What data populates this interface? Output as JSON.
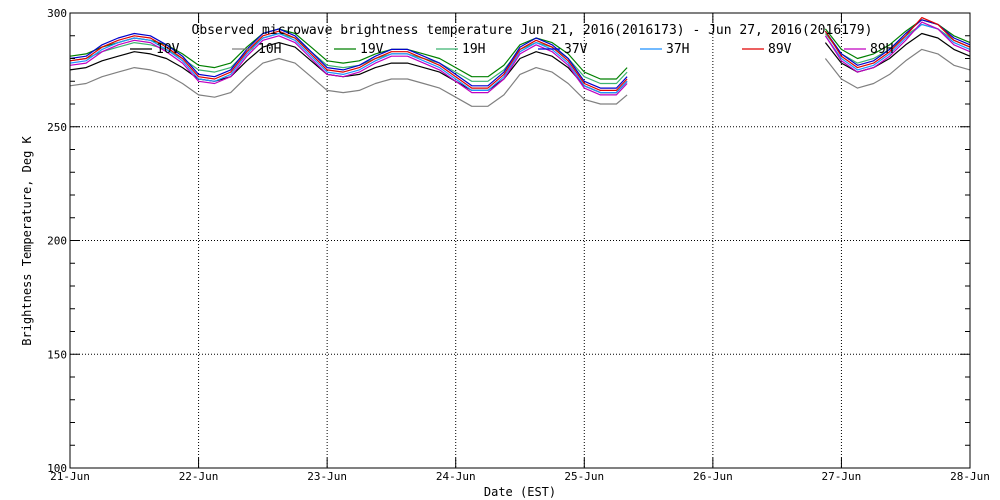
{
  "chart_data": {
    "type": "line",
    "title": "Observed microwave brightness temperature Jun 21, 2016(2016173) - Jun 27, 2016(2016179)",
    "xlabel": "Date (EST)",
    "ylabel": "Brightness Temperature, Deg K",
    "x_range": [
      "2016-06-21",
      "2016-06-28"
    ],
    "ylim": [
      100,
      300
    ],
    "x_ticks": [
      "21-Jun",
      "22-Jun",
      "23-Jun",
      "24-Jun",
      "25-Jun",
      "26-Jun",
      "27-Jun",
      "28-Jun"
    ],
    "y_ticks": [
      100,
      150,
      200,
      250,
      300
    ],
    "grid": true,
    "legend_position": "top",
    "legend": [
      "10V",
      "10H",
      "19V",
      "19H",
      "37V",
      "37H",
      "89V",
      "89H"
    ],
    "x": [
      "06-21 00:00",
      "06-21 03:00",
      "06-21 06:00",
      "06-21 09:00",
      "06-21 12:00",
      "06-21 15:00",
      "06-21 18:00",
      "06-21 21:00",
      "06-22 00:00",
      "06-22 03:00",
      "06-22 06:00",
      "06-22 09:00",
      "06-22 12:00",
      "06-22 15:00",
      "06-22 18:00",
      "06-22 21:00",
      "06-23 00:00",
      "06-23 03:00",
      "06-23 06:00",
      "06-23 09:00",
      "06-23 12:00",
      "06-23 15:00",
      "06-23 18:00",
      "06-23 21:00",
      "06-24 00:00",
      "06-24 03:00",
      "06-24 06:00",
      "06-24 09:00",
      "06-24 12:00",
      "06-24 15:00",
      "06-24 18:00",
      "06-24 21:00",
      "06-25 00:00",
      "06-25 03:00",
      "06-25 06:00",
      "06-25 08:00",
      "06-26 18:00",
      "06-26 21:00",
      "06-27 00:00",
      "06-27 03:00",
      "06-27 06:00",
      "06-27 09:00",
      "06-27 12:00",
      "06-27 15:00",
      "06-27 18:00",
      "06-27 21:00",
      "06-28 00:00"
    ],
    "series": [
      {
        "name": "10V",
        "color": "#000000",
        "values": [
          275,
          276,
          279,
          281,
          283,
          282,
          280,
          276,
          271,
          270,
          272,
          279,
          285,
          287,
          285,
          279,
          273,
          272,
          273,
          276,
          278,
          278,
          276,
          274,
          270,
          266,
          266,
          271,
          280,
          283,
          281,
          276,
          268,
          265,
          265,
          270,
          null,
          287,
          278,
          274,
          276,
          280,
          286,
          291,
          289,
          284,
          281
        ]
      },
      {
        "name": "10H",
        "color": "#808080",
        "values": [
          268,
          269,
          272,
          274,
          276,
          275,
          273,
          269,
          264,
          263,
          265,
          272,
          278,
          280,
          278,
          272,
          266,
          265,
          266,
          269,
          271,
          271,
          269,
          267,
          263,
          259,
          259,
          264,
          273,
          276,
          274,
          269,
          262,
          260,
          260,
          264,
          null,
          280,
          271,
          267,
          269,
          273,
          279,
          284,
          282,
          277,
          275
        ]
      },
      {
        "name": "19V",
        "color": "#008000",
        "values": [
          281,
          282,
          285,
          287,
          289,
          288,
          286,
          282,
          277,
          276,
          278,
          285,
          291,
          293,
          291,
          285,
          279,
          278,
          279,
          282,
          284,
          284,
          282,
          280,
          276,
          272,
          272,
          277,
          286,
          289,
          287,
          282,
          274,
          271,
          271,
          276,
          null,
          293,
          284,
          280,
          282,
          286,
          292,
          297,
          295,
          290,
          287
        ]
      },
      {
        "name": "19H",
        "color": "#3cb371",
        "values": [
          279,
          280,
          283,
          285,
          287,
          286,
          284,
          280,
          275,
          274,
          276,
          283,
          289,
          291,
          289,
          283,
          277,
          276,
          277,
          280,
          282,
          282,
          280,
          278,
          274,
          270,
          270,
          275,
          284,
          287,
          285,
          280,
          272,
          269,
          269,
          274,
          null,
          291,
          282,
          278,
          280,
          284,
          290,
          295,
          293,
          288,
          285
        ]
      },
      {
        "name": "37V",
        "color": "#0000cd",
        "values": [
          280,
          281,
          286,
          289,
          291,
          290,
          286,
          281,
          273,
          272,
          275,
          284,
          291,
          293,
          290,
          283,
          276,
          275,
          277,
          281,
          284,
          284,
          281,
          278,
          273,
          268,
          268,
          274,
          285,
          289,
          286,
          280,
          270,
          267,
          267,
          272,
          null,
          292,
          282,
          277,
          279,
          284,
          291,
          297,
          295,
          289,
          286
        ]
      },
      {
        "name": "37H",
        "color": "#1e90ff",
        "values": [
          278,
          279,
          284,
          287,
          289,
          288,
          284,
          279,
          271,
          270,
          273,
          282,
          289,
          291,
          288,
          281,
          274,
          273,
          275,
          279,
          282,
          282,
          279,
          276,
          271,
          266,
          266,
          272,
          283,
          287,
          284,
          278,
          268,
          265,
          265,
          270,
          null,
          290,
          280,
          275,
          277,
          282,
          289,
          295,
          293,
          287,
          284
        ]
      },
      {
        "name": "89V",
        "color": "#e00000",
        "values": [
          279,
          280,
          285,
          288,
          290,
          289,
          285,
          280,
          272,
          271,
          274,
          283,
          290,
          292,
          289,
          282,
          275,
          274,
          276,
          280,
          283,
          283,
          280,
          277,
          272,
          267,
          267,
          273,
          284,
          288,
          285,
          279,
          269,
          266,
          266,
          271,
          null,
          292,
          281,
          276,
          278,
          283,
          290,
          298,
          295,
          288,
          285
        ]
      },
      {
        "name": "89H",
        "color": "#c000c0",
        "values": [
          277,
          278,
          283,
          286,
          288,
          287,
          283,
          278,
          270,
          269,
          272,
          281,
          288,
          290,
          287,
          280,
          273,
          272,
          274,
          278,
          281,
          281,
          278,
          275,
          270,
          265,
          265,
          271,
          282,
          286,
          283,
          277,
          267,
          264,
          264,
          269,
          null,
          290,
          279,
          274,
          276,
          281,
          288,
          296,
          293,
          286,
          283
        ]
      }
    ]
  }
}
